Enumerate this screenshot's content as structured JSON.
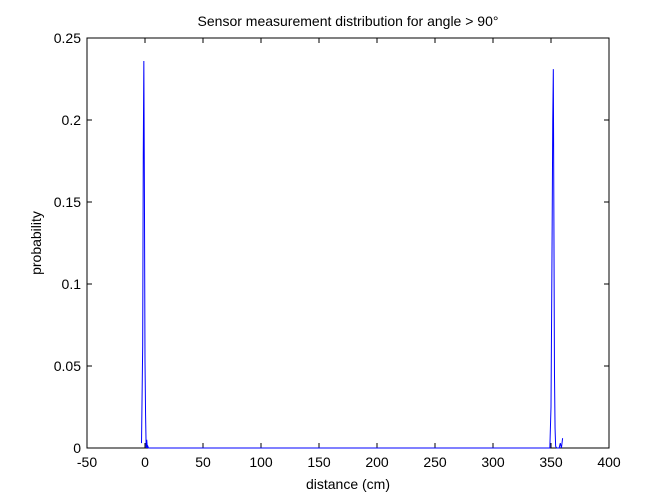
{
  "chart_data": {
    "type": "line",
    "title": "Sensor measurement distribution for angle > 90°",
    "xlabel": "distance (cm)",
    "ylabel": "probability",
    "xlim": [
      -50,
      400
    ],
    "ylim": [
      0,
      0.25
    ],
    "xticks": [
      -50,
      0,
      50,
      100,
      150,
      200,
      250,
      300,
      350,
      400
    ],
    "yticks": [
      0,
      0.05,
      0.1,
      0.15,
      0.2,
      0.25
    ],
    "xtick_labels": [
      "-50",
      "0",
      "50",
      "100",
      "150",
      "200",
      "250",
      "300",
      "350",
      "400"
    ],
    "ytick_labels": [
      "0",
      "0.05",
      "0.1",
      "0.15",
      "0.2",
      "0.25"
    ],
    "grid": false,
    "legend": "none",
    "series": [
      {
        "color": "#0000ff",
        "x": [
          -3,
          -2,
          -1.5,
          -1,
          -0.5,
          0,
          0.5,
          1,
          1.5,
          2,
          2.5,
          3,
          349,
          350,
          350.5,
          351,
          351.5,
          352,
          352.5,
          353,
          353.5,
          354,
          355,
          356,
          357,
          358,
          359,
          360
        ],
        "y": [
          0.003,
          0.062,
          0.178,
          0.236,
          0.155,
          0.053,
          0.02,
          0.0,
          0.005,
          0.0,
          0.001,
          0.0,
          0.0,
          0.025,
          0.078,
          0.135,
          0.199,
          0.231,
          0.138,
          0.045,
          0.012,
          0.001,
          0.0,
          0.0,
          0.0,
          0.003,
          0.0,
          0.006
        ]
      }
    ]
  }
}
